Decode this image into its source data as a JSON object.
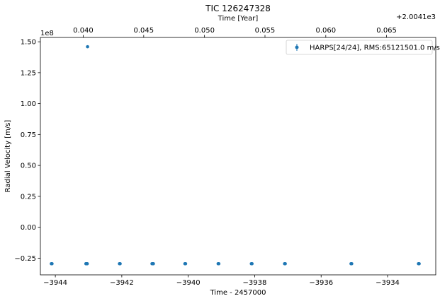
{
  "chart_data": {
    "type": "scatter",
    "title": "TIC 126247328",
    "xlabel": "Time - 2457000",
    "ylabel": "Radial Velocity [m/s]",
    "top_xlabel": "Time [Year]",
    "y_multiplier_label": "1e8",
    "top_offset_label": "+2.0041e3",
    "xlim": [
      -3944.45,
      -3932.55
    ],
    "ylim": [
      -0.385,
      1.535
    ],
    "x_ticks": [
      -3944,
      -3942,
      -3940,
      -3938,
      -3936,
      -3934
    ],
    "x_tick_labels": [
      "−3944",
      "−3942",
      "−3940",
      "−3938",
      "−3936",
      "−3934"
    ],
    "y_ticks": [
      -0.25,
      0.0,
      0.25,
      0.5,
      0.75,
      1.0,
      1.25,
      1.5
    ],
    "y_tick_labels": [
      "−0.25",
      "0.00",
      "0.25",
      "0.50",
      "0.75",
      "1.00",
      "1.25",
      "1.50"
    ],
    "top_ticks": [
      {
        "x": -3943.16,
        "label": "0.040"
      },
      {
        "x": -3941.34,
        "label": "0.045"
      },
      {
        "x": -3939.51,
        "label": "0.050"
      },
      {
        "x": -3937.69,
        "label": "0.055"
      },
      {
        "x": -3935.86,
        "label": "0.060"
      },
      {
        "x": -3934.03,
        "label": "0.065"
      }
    ],
    "grid": false,
    "legend_position": "top-right",
    "series": [
      {
        "name": "HARPS[24/24], RMS:65121501.0 m/s",
        "color": "#1f77b4",
        "marker": "circle",
        "x": [
          -3944.12,
          -3944.1,
          -3943.08,
          -3943.06,
          -3943.04,
          -3943.03,
          -3943.07,
          -3942.07,
          -3942.05,
          -3941.09,
          -3941.07,
          -3941.05,
          -3940.1,
          -3940.08,
          -3939.1,
          -3939.08,
          -3938.1,
          -3938.08,
          -3937.1,
          -3937.08,
          -3935.1,
          -3935.08,
          -3933.07,
          -3933.05
        ],
        "y": [
          -0.295,
          -0.295,
          -0.295,
          -0.295,
          -0.295,
          1.46,
          -0.295,
          -0.295,
          -0.295,
          -0.295,
          -0.295,
          -0.295,
          -0.295,
          -0.295,
          -0.295,
          -0.295,
          -0.295,
          -0.295,
          -0.295,
          -0.295,
          -0.295,
          -0.295,
          -0.295,
          -0.295
        ]
      }
    ]
  }
}
